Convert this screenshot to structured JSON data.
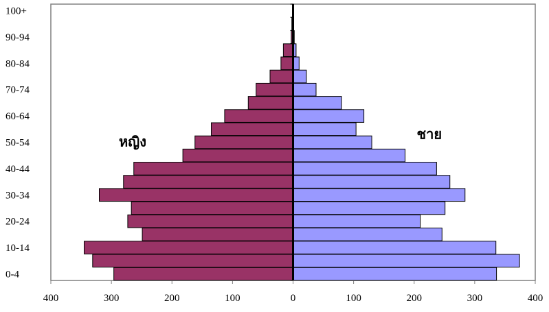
{
  "chart_data": {
    "type": "bar",
    "orientation": "horizontal",
    "layout": "population-pyramid",
    "title": "",
    "xlabel": "",
    "ylabel": "",
    "xlim": [
      -400,
      400
    ],
    "x_ticks": [
      -400,
      -300,
      -200,
      -100,
      0,
      100,
      200,
      300,
      400
    ],
    "x_tick_labels": [
      "400",
      "300",
      "200",
      "100",
      "0",
      "100",
      "200",
      "300",
      "400"
    ],
    "categories": [
      "0-4",
      "5-9",
      "10-14",
      "15-19",
      "20-24",
      "25-29",
      "30-34",
      "35-39",
      "40-44",
      "45-49",
      "50-54",
      "55-59",
      "60-64",
      "65-69",
      "70-74",
      "75-79",
      "80-84",
      "85-89",
      "90-94",
      "95-99",
      "100+"
    ],
    "shown_category_labels": [
      "0-4",
      "10-14",
      "20-24",
      "30-34",
      "40-44",
      "50-54",
      "60-64",
      "70-74",
      "80-84",
      "90-94",
      "100+"
    ],
    "series": [
      {
        "name": "หญิง",
        "side": "left",
        "color": "#993366",
        "values": [
          296,
          331,
          345,
          249,
          273,
          267,
          320,
          280,
          263,
          182,
          162,
          135,
          113,
          74,
          61,
          38,
          20,
          16,
          3,
          2,
          1
        ]
      },
      {
        "name": "ชาย",
        "side": "right",
        "color": "#9999ff",
        "values": [
          336,
          374,
          335,
          246,
          210,
          251,
          284,
          259,
          237,
          185,
          130,
          104,
          117,
          80,
          38,
          22,
          10,
          5,
          2,
          1,
          1
        ]
      }
    ],
    "annotations": [
      "หญิง",
      "ชาย"
    ],
    "grid": false,
    "legend": "none",
    "colors": {
      "bar_outline": "#000000",
      "frame": "#808080"
    }
  }
}
